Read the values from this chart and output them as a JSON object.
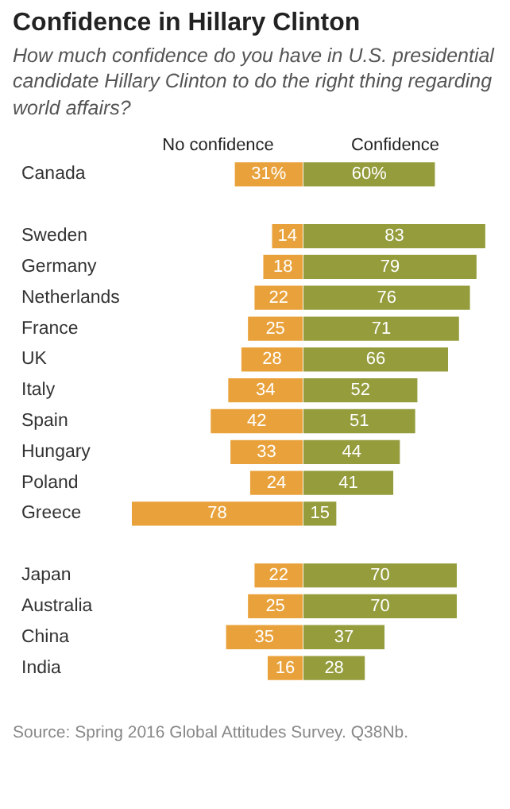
{
  "chart_data": [
    {
      "type": "bar",
      "orientation": "horizontal",
      "title": "Confidence in Hillary Clinton",
      "subtitle": "How much confidence do you have in U.S. presidential candidate Hillary Clinton to do the right thing regarding world affairs?",
      "xlabel": "No confidence",
      "color": "#e9a23b",
      "categories": [
        "Canada",
        null,
        "Sweden",
        "Germany",
        "Netherlands",
        "France",
        "UK",
        "Italy",
        "Spain",
        "Hungary",
        "Poland",
        "Greece",
        null,
        "Japan",
        "Australia",
        "China",
        "India"
      ],
      "values": [
        31,
        null,
        14,
        18,
        22,
        25,
        28,
        34,
        42,
        33,
        24,
        78,
        null,
        22,
        25,
        35,
        16
      ],
      "value_labels": [
        "31%",
        null,
        "14",
        "18",
        "22",
        "25",
        "28",
        "34",
        "42",
        "33",
        "24",
        "78",
        null,
        "22",
        "25",
        "35",
        "16"
      ],
      "tick_labels": "y",
      "annotations": [
        "Source: Spring 2016 Global Attitudes Survey. Q38Nb."
      ]
    },
    {
      "type": "bar",
      "orientation": "horizontal",
      "xlabel": "Confidence",
      "color": "#949c3c",
      "categories": [
        null,
        null,
        null,
        null,
        null,
        null,
        null,
        null,
        null,
        null,
        null,
        null,
        null,
        null,
        null,
        null,
        null
      ],
      "values": [
        60,
        null,
        83,
        79,
        76,
        71,
        66,
        52,
        51,
        44,
        41,
        15,
        null,
        70,
        70,
        37,
        28
      ],
      "value_labels": [
        "60%",
        null,
        "83",
        "79",
        "76",
        "71",
        "66",
        "52",
        "51",
        "44",
        "41",
        "15",
        null,
        "70",
        "70",
        "37",
        "28"
      ],
      "tick_labels": false
    }
  ]
}
